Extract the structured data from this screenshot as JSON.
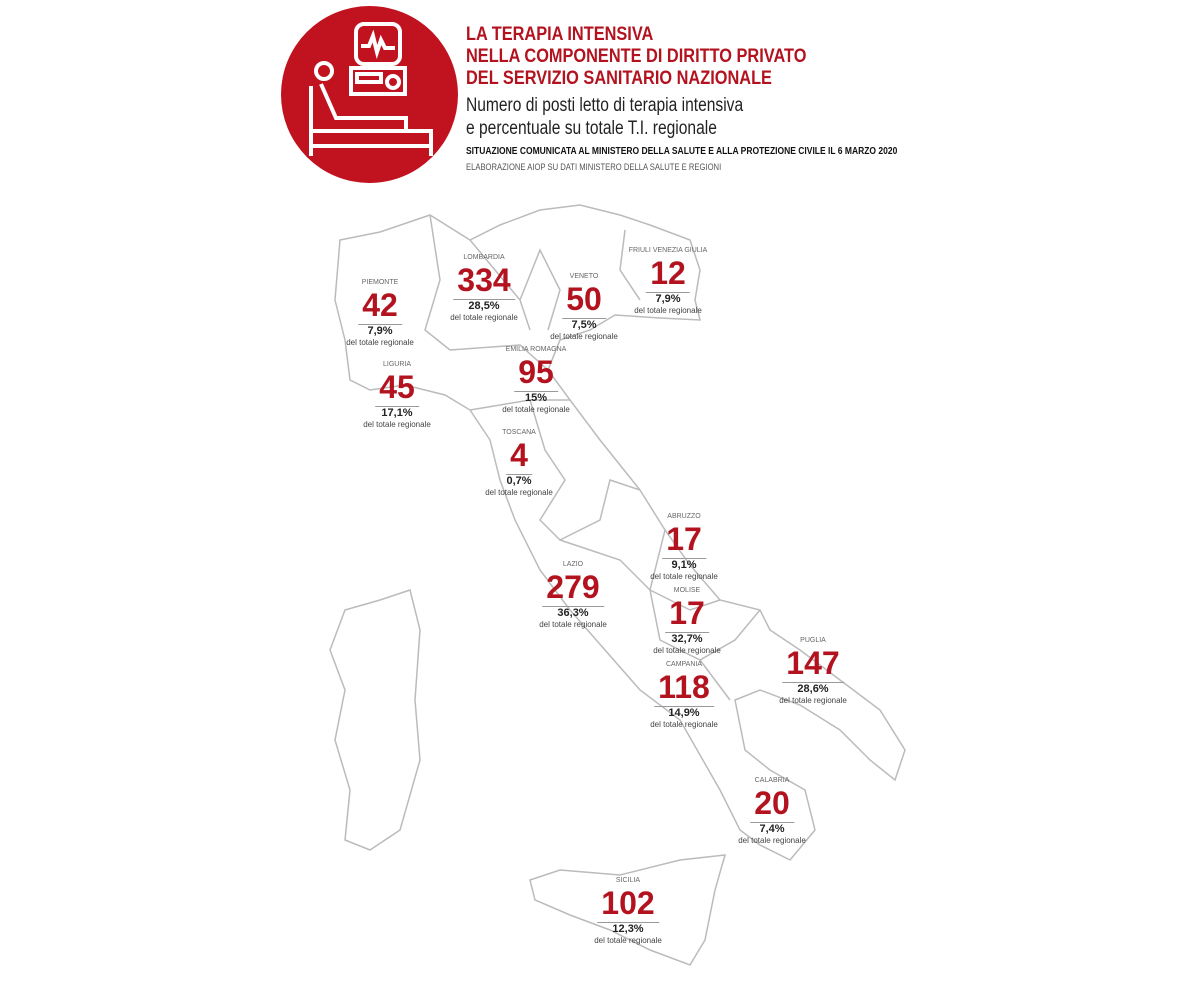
{
  "header": {
    "title_lines": [
      "LA TERAPIA INTENSIVA",
      "NELLA COMPONENTE DI DIRITTO PRIVATO",
      "DEL SERVIZIO SANITARIO NAZIONALE"
    ],
    "subtitle_lines": [
      "Numero di posti letto di terapia intensiva",
      "e percentuale su totale T.I. regionale"
    ],
    "source_main": "SITUAZIONE COMUNICATA AL MINISTERO DELLA SALUTE  E ALLA PROTEZIONE CIVILE IL 6 MARZO 2020",
    "source_note": "ELABORAZIONE AIOP SU DATI MINISTERO DELLA SALUTE E REGIONI",
    "logo_icon": "icu-bed-monitor-icon",
    "accent_color": "#c0121f"
  },
  "regions": [
    {
      "name": "PIEMONTE",
      "beds": "42",
      "pct": "7,9%",
      "note": "del totale regionale"
    },
    {
      "name": "LOMBARDIA",
      "beds": "334",
      "pct": "28,5%",
      "note": "del totale regionale"
    },
    {
      "name": "VENETO",
      "beds": "50",
      "pct": "7,5%",
      "note": "del totale regionale"
    },
    {
      "name": "FRIULI VENEZIA GIULIA",
      "beds": "12",
      "pct": "7,9%",
      "note": "del totale regionale"
    },
    {
      "name": "LIGURIA",
      "beds": "45",
      "pct": "17,1%",
      "note": "del totale regionale"
    },
    {
      "name": "EMILIA ROMAGNA",
      "beds": "95",
      "pct": "15%",
      "note": "del totale regionale"
    },
    {
      "name": "TOSCANA",
      "beds": "4",
      "pct": "0,7%",
      "note": "del totale regionale"
    },
    {
      "name": "ABRUZZO",
      "beds": "17",
      "pct": "9,1%",
      "note": "del totale regionale"
    },
    {
      "name": "LAZIO",
      "beds": "279",
      "pct": "36,3%",
      "note": "del totale regionale"
    },
    {
      "name": "MOLISE",
      "beds": "17",
      "pct": "32,7%",
      "note": "del totale regionale"
    },
    {
      "name": "PUGLIA",
      "beds": "147",
      "pct": "28,6%",
      "note": "del totale regionale"
    },
    {
      "name": "CAMPANIA",
      "beds": "118",
      "pct": "14,9%",
      "note": "del totale regionale"
    },
    {
      "name": "CALABRIA",
      "beds": "20",
      "pct": "7,4%",
      "note": "del totale regionale"
    },
    {
      "name": "SICILIA",
      "beds": "102",
      "pct": "12,3%",
      "note": "del totale regionale"
    }
  ]
}
